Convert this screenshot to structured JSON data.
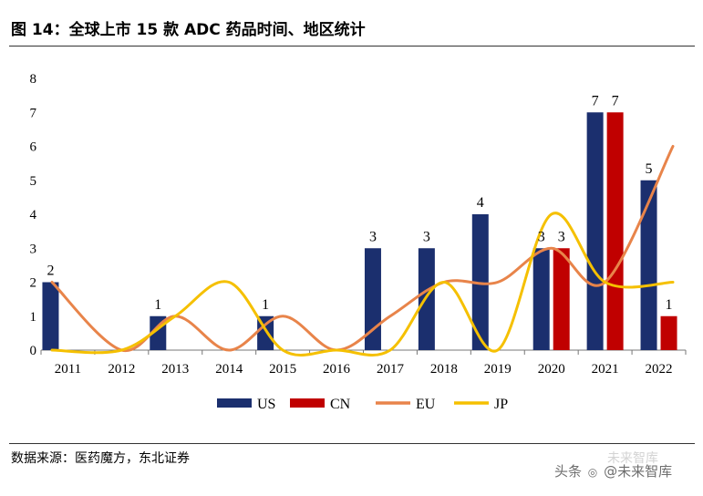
{
  "header": {
    "title": "图 14：全球上市 15 款 ADC 药品时间、地区统计"
  },
  "footer": {
    "source": "数据来源：医药魔方，东北证券"
  },
  "watermark": {
    "prefix": "头条",
    "handle": "@未来智库",
    "faint": "未来智库"
  },
  "colors": {
    "US": "#1b2f6e",
    "CN": "#c00000",
    "EU": "#e8844a",
    "JP": "#f5c000"
  },
  "chart_data": {
    "type": "bar",
    "title": "全球上市 15 款 ADC 药品时间、地区统计",
    "categories": [
      "2011",
      "2012",
      "2013",
      "2014",
      "2015",
      "2016",
      "2017",
      "2018",
      "2019",
      "2020",
      "2021",
      "2022"
    ],
    "series": [
      {
        "name": "US",
        "kind": "bar",
        "values": [
          2,
          0,
          1,
          0,
          1,
          0,
          3,
          3,
          4,
          3,
          7,
          5
        ]
      },
      {
        "name": "CN",
        "kind": "bar",
        "values": [
          0,
          0,
          0,
          0,
          0,
          0,
          0,
          0,
          0,
          3,
          7,
          1
        ]
      },
      {
        "name": "EU",
        "kind": "line",
        "values": [
          2,
          0,
          1,
          0,
          1,
          0,
          1,
          2,
          2,
          3,
          2,
          6
        ]
      },
      {
        "name": "JP",
        "kind": "line",
        "values": [
          0,
          0,
          1,
          2,
          0,
          0,
          0,
          2,
          0,
          4,
          2,
          2
        ]
      }
    ],
    "ylim": [
      0,
      8
    ],
    "yticks": [
      "0",
      "1",
      "2",
      "3",
      "4",
      "5",
      "6",
      "7",
      "8"
    ],
    "legend": [
      "US",
      "CN",
      "EU",
      "JP"
    ],
    "legend_position": "bottom",
    "xlabel": "",
    "ylabel": "",
    "grid": false
  }
}
